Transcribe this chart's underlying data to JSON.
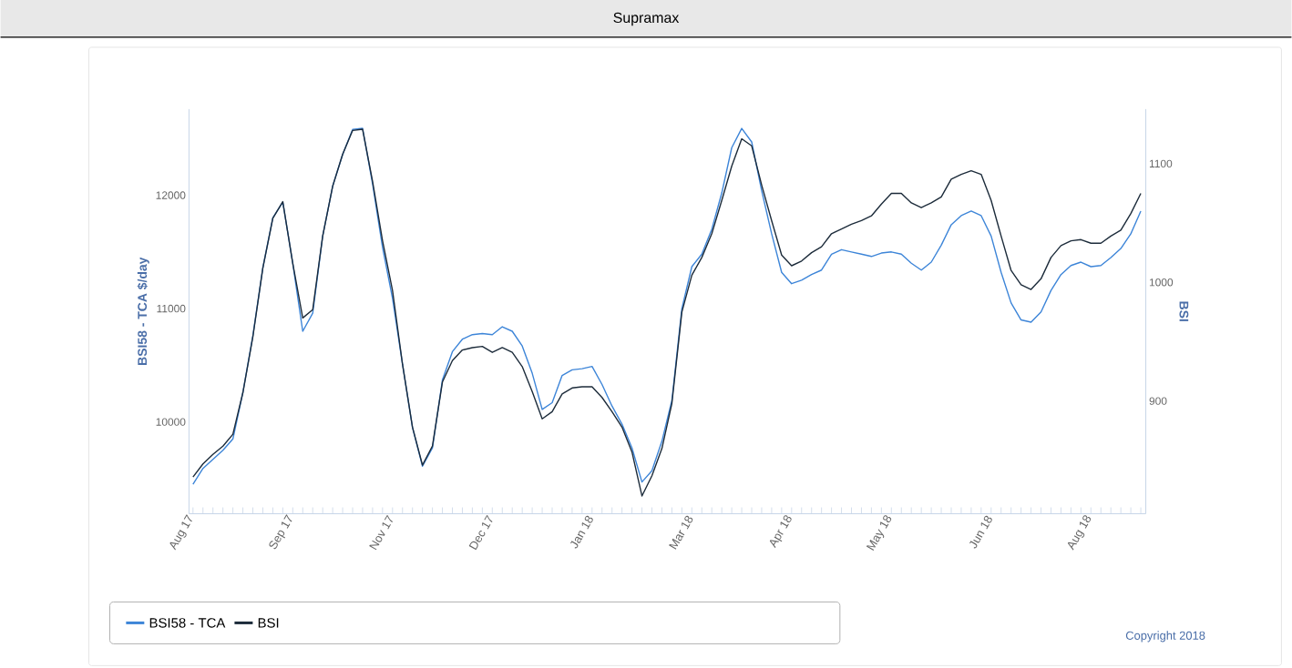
{
  "chart_data": {
    "type": "line",
    "title": "Supramax",
    "ylabel": "BSI58 - TCA $/day",
    "y2label": "BSI",
    "categories": [
      "Aug 17",
      null,
      null,
      null,
      null,
      null,
      null,
      null,
      null,
      null,
      "Sep 17",
      null,
      null,
      null,
      null,
      null,
      null,
      null,
      null,
      null,
      "Nov 17",
      null,
      null,
      null,
      null,
      null,
      null,
      null,
      null,
      null,
      "Dec 17",
      null,
      null,
      null,
      null,
      null,
      null,
      null,
      null,
      null,
      "Jan 18",
      null,
      null,
      null,
      null,
      null,
      null,
      null,
      null,
      null,
      "Mar 18",
      null,
      null,
      null,
      null,
      null,
      null,
      null,
      null,
      null,
      "Apr 18",
      null,
      null,
      null,
      null,
      null,
      null,
      null,
      null,
      null,
      "May 18",
      null,
      null,
      null,
      null,
      null,
      null,
      null,
      null,
      null,
      "Jun 18",
      null,
      null,
      null,
      null,
      null,
      null,
      null,
      null,
      null,
      "Aug 18",
      null,
      null,
      null,
      null,
      null
    ],
    "series": [
      {
        "name": "BSI58 - TCA",
        "color": "#3d85d8",
        "values": [
          9450,
          9590,
          9670,
          9750,
          9850,
          10260,
          10760,
          11360,
          11800,
          11940,
          11400,
          10800,
          10960,
          11640,
          12080,
          12360,
          12580,
          12590,
          12100,
          11540,
          11090,
          10510,
          9950,
          9610,
          9770,
          10370,
          10620,
          10730,
          10770,
          10780,
          10770,
          10840,
          10800,
          10670,
          10430,
          10110,
          10170,
          10410,
          10460,
          10470,
          10490,
          10330,
          10140,
          9980,
          9770,
          9470,
          9570,
          9830,
          10190,
          11000,
          11370,
          11480,
          11700,
          12020,
          12420,
          12590,
          12470,
          12040,
          11660,
          11320,
          11220,
          11250,
          11300,
          11340,
          11480,
          11520,
          11500,
          11480,
          11460,
          11490,
          11500,
          11480,
          11400,
          11340,
          11410,
          11560,
          11740,
          11820,
          11860,
          11820,
          11640,
          11320,
          11050,
          10900,
          10880,
          10970,
          11160,
          11300,
          11380,
          11410,
          11370,
          11380,
          11450,
          11530,
          11660,
          11860
        ]
      },
      {
        "name": "BSI",
        "color": "#1c2b3a",
        "axis": "y2",
        "values": [
          836,
          847,
          855,
          862,
          872,
          907,
          954,
          1012,
          1054,
          1068,
          1016,
          970,
          977,
          1039,
          1081,
          1108,
          1128,
          1129,
          1085,
          1035,
          993,
          931,
          878,
          846,
          862,
          916,
          934,
          943,
          945,
          946,
          941,
          945,
          941,
          929,
          908,
          885,
          891,
          906,
          911,
          912,
          912,
          903,
          891,
          878,
          857,
          820,
          837,
          860,
          898,
          975,
          1006,
          1021,
          1041,
          1069,
          1098,
          1121,
          1115,
          1082,
          1052,
          1023,
          1014,
          1018,
          1025,
          1030,
          1041,
          1045,
          1049,
          1052,
          1056,
          1066,
          1075,
          1075,
          1067,
          1063,
          1067,
          1072,
          1087,
          1091,
          1094,
          1091,
          1069,
          1039,
          1010,
          998,
          994,
          1003,
          1021,
          1031,
          1035,
          1036,
          1033,
          1033,
          1039,
          1044,
          1058,
          1075
        ]
      }
    ],
    "ylim": [
      9190,
      12760
    ],
    "yticks": [
      10000,
      11000,
      12000
    ],
    "y2lim": [
      805,
      1146
    ],
    "y2ticks": [
      900,
      1000,
      1100
    ],
    "legend": "bottom",
    "grid": false,
    "annotations": [
      "Copyright 2018"
    ]
  }
}
